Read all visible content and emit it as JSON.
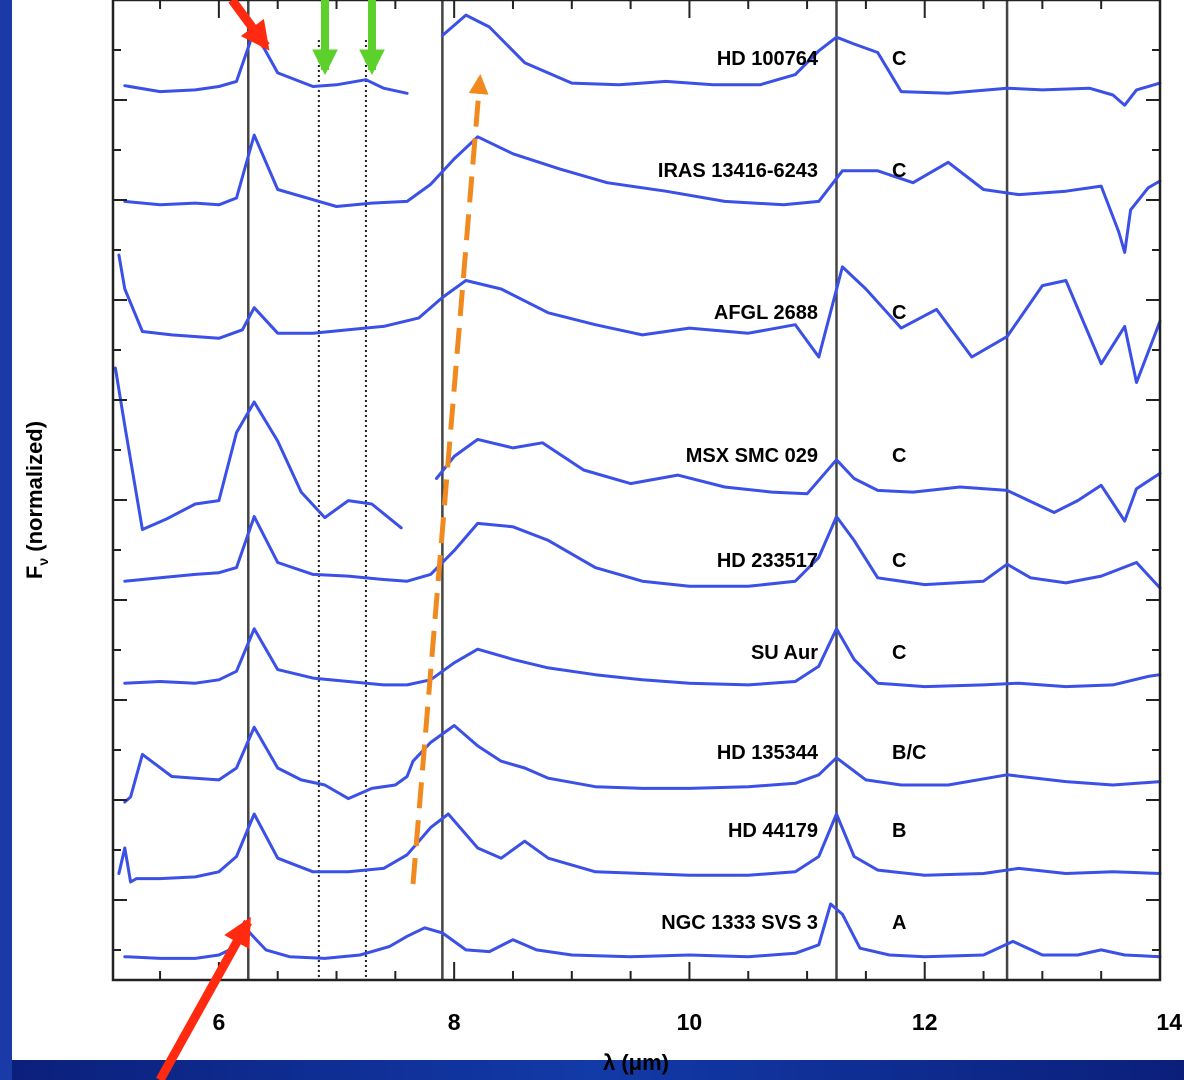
{
  "colors": {
    "background": "#1d3fb0",
    "plot_background": "#ffffff",
    "spectrum": "#3a50e6",
    "red_arrow": "#ff2a10",
    "green_arrow": "#5cd12b",
    "orange_arrow": "#f08a1e"
  },
  "chart_data": {
    "type": "line",
    "xlabel": "λ (μm)",
    "ylabel": "F_ν (normalized)",
    "ylabel_main": "F",
    "ylabel_sub": "ν",
    "ylabel_rest": " (normalized)",
    "xlim": [
      5.1,
      14.0
    ],
    "xticks": [
      6,
      8,
      10,
      12,
      14
    ],
    "xtick_labels": [
      "6",
      "8",
      "10",
      "12",
      "14"
    ],
    "vertical_lines_solid": [
      6.25,
      7.9,
      11.25,
      12.7
    ],
    "vertical_lines_dotted": [
      6.85,
      7.25
    ],
    "series": [
      {
        "name": "HD 100764",
        "class": "C",
        "label_y": 0.5,
        "x": [
          5.2,
          5.5,
          5.8,
          6.0,
          6.15,
          6.3,
          6.5,
          6.8,
          7.0,
          7.25,
          7.4,
          7.6,
          7.75,
          7.9,
          8.1,
          8.3,
          8.6,
          9.0,
          9.4,
          9.8,
          10.2,
          10.6,
          10.9,
          11.1,
          11.25,
          11.4,
          11.6,
          11.8,
          12.2,
          12.7,
          13.0,
          13.4,
          13.6,
          13.7,
          13.8,
          14.0
        ],
        "y": [
          0.55,
          0.2,
          0.3,
          0.5,
          0.8,
          3.8,
          1.3,
          0.5,
          0.6,
          0.9,
          0.4,
          0.1,
          null,
          3.5,
          4.7,
          4.0,
          1.9,
          0.7,
          0.6,
          0.8,
          0.6,
          0.6,
          1.2,
          2.6,
          3.4,
          3.0,
          2.5,
          0.2,
          0.1,
          0.4,
          0.3,
          0.4,
          0.0,
          -0.6,
          0.3,
          0.7
        ]
      },
      {
        "name": "IRAS 13416-6243",
        "class": "C",
        "label_y": 0.5,
        "x": [
          5.2,
          5.5,
          5.8,
          6.0,
          6.15,
          6.3,
          6.5,
          6.8,
          7.0,
          7.3,
          7.6,
          7.8,
          8.0,
          8.2,
          8.5,
          8.9,
          9.3,
          9.8,
          10.3,
          10.8,
          11.1,
          11.3,
          11.6,
          11.9,
          12.2,
          12.5,
          12.8,
          13.2,
          13.5,
          13.65,
          13.7,
          13.75,
          13.9,
          14.0
        ],
        "y": [
          0.8,
          0.6,
          0.7,
          0.6,
          1.0,
          4.7,
          1.5,
          0.9,
          0.5,
          0.7,
          0.8,
          1.8,
          3.3,
          4.6,
          3.6,
          2.7,
          1.9,
          1.4,
          0.8,
          0.6,
          0.8,
          2.6,
          2.6,
          1.9,
          3.1,
          1.5,
          1.2,
          1.4,
          1.7,
          -1.0,
          -2.2,
          0.3,
          1.6,
          2.0
        ]
      },
      {
        "name": "AFGL 2688",
        "class": "C",
        "label_y": 0.5,
        "x": [
          5.15,
          5.2,
          5.35,
          5.6,
          6.0,
          6.2,
          6.3,
          6.5,
          6.8,
          7.1,
          7.4,
          7.7,
          7.9,
          8.1,
          8.4,
          8.8,
          9.2,
          9.6,
          10.0,
          10.5,
          10.9,
          11.1,
          11.3,
          11.5,
          11.8,
          12.1,
          12.4,
          12.7,
          13.0,
          13.2,
          13.5,
          13.7,
          13.8,
          14.0
        ],
        "y": [
          5.0,
          3.0,
          0.5,
          0.3,
          0.1,
          0.6,
          1.9,
          0.4,
          0.4,
          0.6,
          0.8,
          1.3,
          2.5,
          3.5,
          3.0,
          1.6,
          0.9,
          0.3,
          0.7,
          0.4,
          0.9,
          -1.0,
          4.3,
          3.0,
          0.7,
          1.8,
          -1.0,
          0.2,
          3.2,
          3.5,
          -1.4,
          0.8,
          -2.5,
          1.1
        ]
      },
      {
        "name": "MSX SMC 029",
        "class": "C",
        "label_y": 0.5,
        "x": [
          5.12,
          5.2,
          5.35,
          5.55,
          5.8,
          6.0,
          6.15,
          6.3,
          6.5,
          6.7,
          6.9,
          7.1,
          7.3,
          7.55,
          7.7,
          7.85,
          8.0,
          8.2,
          8.5,
          8.75,
          9.1,
          9.5,
          9.9,
          10.3,
          10.7,
          11.0,
          11.25,
          11.4,
          11.6,
          11.9,
          12.3,
          12.7,
          13.1,
          13.3,
          13.5,
          13.7,
          13.8,
          14.0
        ],
        "y": [
          6.0,
          2.6,
          -3.5,
          -2.9,
          -2.0,
          -1.8,
          2.2,
          4.0,
          1.7,
          -1.3,
          -2.8,
          -1.8,
          -2.0,
          -3.4,
          null,
          -0.5,
          0.8,
          1.8,
          1.3,
          1.6,
          0.0,
          -0.8,
          -0.3,
          -1.0,
          -1.3,
          -1.4,
          0.6,
          -0.5,
          -1.2,
          -1.3,
          -1.0,
          -1.2,
          -2.5,
          -1.8,
          -0.9,
          -3.0,
          -1.1,
          -0.2
        ]
      },
      {
        "name": "HD 233517",
        "class": "C",
        "label_y": 0.5,
        "x": [
          5.2,
          5.5,
          5.8,
          6.0,
          6.15,
          6.3,
          6.5,
          6.8,
          7.1,
          7.4,
          7.6,
          7.8,
          8.0,
          8.2,
          8.5,
          8.8,
          9.2,
          9.6,
          10.0,
          10.5,
          10.9,
          11.1,
          11.25,
          11.4,
          11.6,
          12.0,
          12.5,
          12.7,
          12.9,
          13.2,
          13.5,
          13.8,
          14.0
        ],
        "y": [
          0.4,
          0.6,
          0.8,
          0.9,
          1.2,
          4.2,
          1.5,
          0.8,
          0.7,
          0.5,
          0.4,
          0.8,
          2.2,
          3.8,
          3.6,
          2.8,
          1.2,
          0.4,
          0.1,
          0.1,
          0.4,
          1.8,
          4.2,
          2.8,
          0.6,
          0.2,
          0.4,
          1.4,
          0.6,
          0.3,
          0.7,
          1.5,
          0.0
        ]
      },
      {
        "name": "SU Aur",
        "class": "C",
        "label_y": 0.5,
        "x": [
          5.2,
          5.5,
          5.8,
          6.0,
          6.15,
          6.3,
          6.5,
          6.8,
          7.1,
          7.4,
          7.6,
          7.8,
          8.0,
          8.2,
          8.5,
          8.8,
          9.2,
          9.6,
          10.0,
          10.5,
          10.9,
          11.1,
          11.25,
          11.4,
          11.6,
          12.0,
          12.5,
          12.8,
          13.2,
          13.6,
          13.9,
          14.0
        ],
        "y": [
          0.4,
          0.5,
          0.4,
          0.6,
          1.1,
          3.6,
          1.2,
          0.7,
          0.5,
          0.3,
          0.3,
          0.6,
          1.6,
          2.4,
          1.8,
          1.3,
          0.9,
          0.6,
          0.4,
          0.3,
          0.5,
          1.4,
          3.6,
          1.8,
          0.4,
          0.2,
          0.3,
          0.4,
          0.2,
          0.3,
          0.8,
          0.9
        ]
      },
      {
        "name": "HD 135344",
        "class": "B/C",
        "label_y": 0.5,
        "x": [
          5.2,
          5.25,
          5.35,
          5.6,
          5.8,
          6.0,
          6.15,
          6.3,
          6.5,
          6.7,
          6.9,
          7.1,
          7.3,
          7.5,
          7.6,
          7.65,
          7.8,
          8.0,
          8.2,
          8.4,
          8.6,
          8.8,
          9.2,
          9.6,
          10.0,
          10.5,
          10.9,
          11.1,
          11.25,
          11.5,
          11.8,
          12.2,
          12.7,
          13.2,
          13.6,
          14.0
        ],
        "y": [
          -1.0,
          -0.7,
          1.8,
          0.5,
          0.4,
          0.3,
          1.0,
          3.4,
          1.0,
          0.3,
          0.0,
          -0.8,
          -0.2,
          0.0,
          0.5,
          1.4,
          2.5,
          3.5,
          2.3,
          1.4,
          1.0,
          0.4,
          -0.1,
          -0.2,
          -0.2,
          -0.1,
          0.1,
          0.6,
          1.6,
          0.3,
          0.0,
          0.0,
          0.6,
          0.2,
          0.0,
          0.2
        ]
      },
      {
        "name": "HD 44179",
        "class": "B",
        "label_y": 0.5,
        "x": [
          5.15,
          5.2,
          5.25,
          5.3,
          5.5,
          5.8,
          6.0,
          6.15,
          6.3,
          6.5,
          6.8,
          7.1,
          7.4,
          7.6,
          7.8,
          7.95,
          8.2,
          8.4,
          8.6,
          8.8,
          9.2,
          9.6,
          10.0,
          10.5,
          10.9,
          11.1,
          11.25,
          11.4,
          11.6,
          12.0,
          12.5,
          12.8,
          13.2,
          13.6,
          14.0
        ],
        "y": [
          -0.5,
          1.0,
          -1.0,
          -0.8,
          -0.8,
          -0.7,
          -0.4,
          0.5,
          3.0,
          0.4,
          -0.4,
          -0.4,
          -0.2,
          0.6,
          2.2,
          3.0,
          1.0,
          0.4,
          1.4,
          0.4,
          -0.4,
          -0.5,
          -0.6,
          -0.6,
          -0.4,
          0.5,
          3.0,
          0.5,
          -0.3,
          -0.6,
          -0.5,
          -0.2,
          -0.5,
          -0.4,
          -0.5
        ]
      },
      {
        "name": "NGC 1333 SVS 3",
        "class": "A",
        "label_y": 0.5,
        "x": [
          5.2,
          5.5,
          5.8,
          6.0,
          6.15,
          6.25,
          6.4,
          6.6,
          6.9,
          7.2,
          7.45,
          7.6,
          7.75,
          7.9,
          8.1,
          8.3,
          8.5,
          8.7,
          9.0,
          9.5,
          10.0,
          10.5,
          10.9,
          11.1,
          11.2,
          11.3,
          11.45,
          11.7,
          12.0,
          12.5,
          12.75,
          13.0,
          13.3,
          13.5,
          13.7,
          14.0
        ],
        "y": [
          -0.1,
          -0.2,
          -0.2,
          0.0,
          0.5,
          1.4,
          0.3,
          -0.1,
          -0.2,
          0.0,
          0.5,
          1.1,
          1.6,
          1.3,
          0.3,
          0.2,
          0.9,
          0.3,
          0.0,
          -0.1,
          0.0,
          -0.1,
          0.1,
          0.6,
          3.0,
          2.4,
          0.4,
          0.0,
          -0.1,
          0.0,
          0.8,
          0.0,
          0.0,
          0.3,
          0.0,
          -0.1
        ]
      }
    ]
  }
}
